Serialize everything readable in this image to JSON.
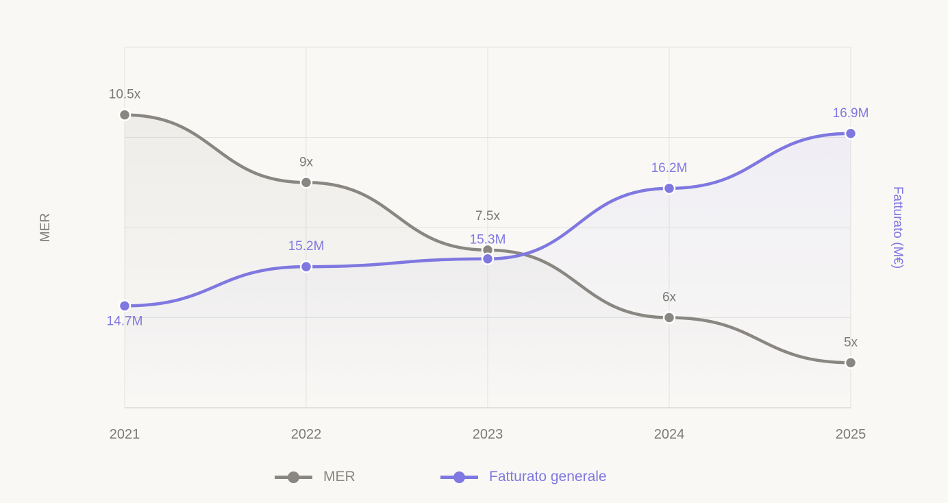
{
  "chart_data": {
    "type": "line",
    "categories": [
      "2021",
      "2022",
      "2023",
      "2024",
      "2025"
    ],
    "series": [
      {
        "name": "MER",
        "axis": "left",
        "values": [
          10.5,
          9,
          7.5,
          6,
          5
        ],
        "labels": [
          "10.5x",
          "9x",
          "7.5x",
          "6x",
          "5x"
        ],
        "color": "#8a8782"
      },
      {
        "name": "Fatturato generale",
        "axis": "right",
        "values": [
          14.7,
          15.2,
          15.3,
          16.2,
          16.9
        ],
        "labels": [
          "14.7M",
          "15.2M",
          "15.3M",
          "16.2M",
          "16.9M"
        ],
        "color": "#7f78e0"
      }
    ],
    "ylabel_left": "MER",
    "ylabel_right": "Fatturato (M€)",
    "ylim_left": [
      4,
      12
    ],
    "ylim_right": [
      13.4,
      18
    ],
    "grid": true,
    "smooth": true,
    "area_fill": true,
    "legend_position": "bottom"
  }
}
